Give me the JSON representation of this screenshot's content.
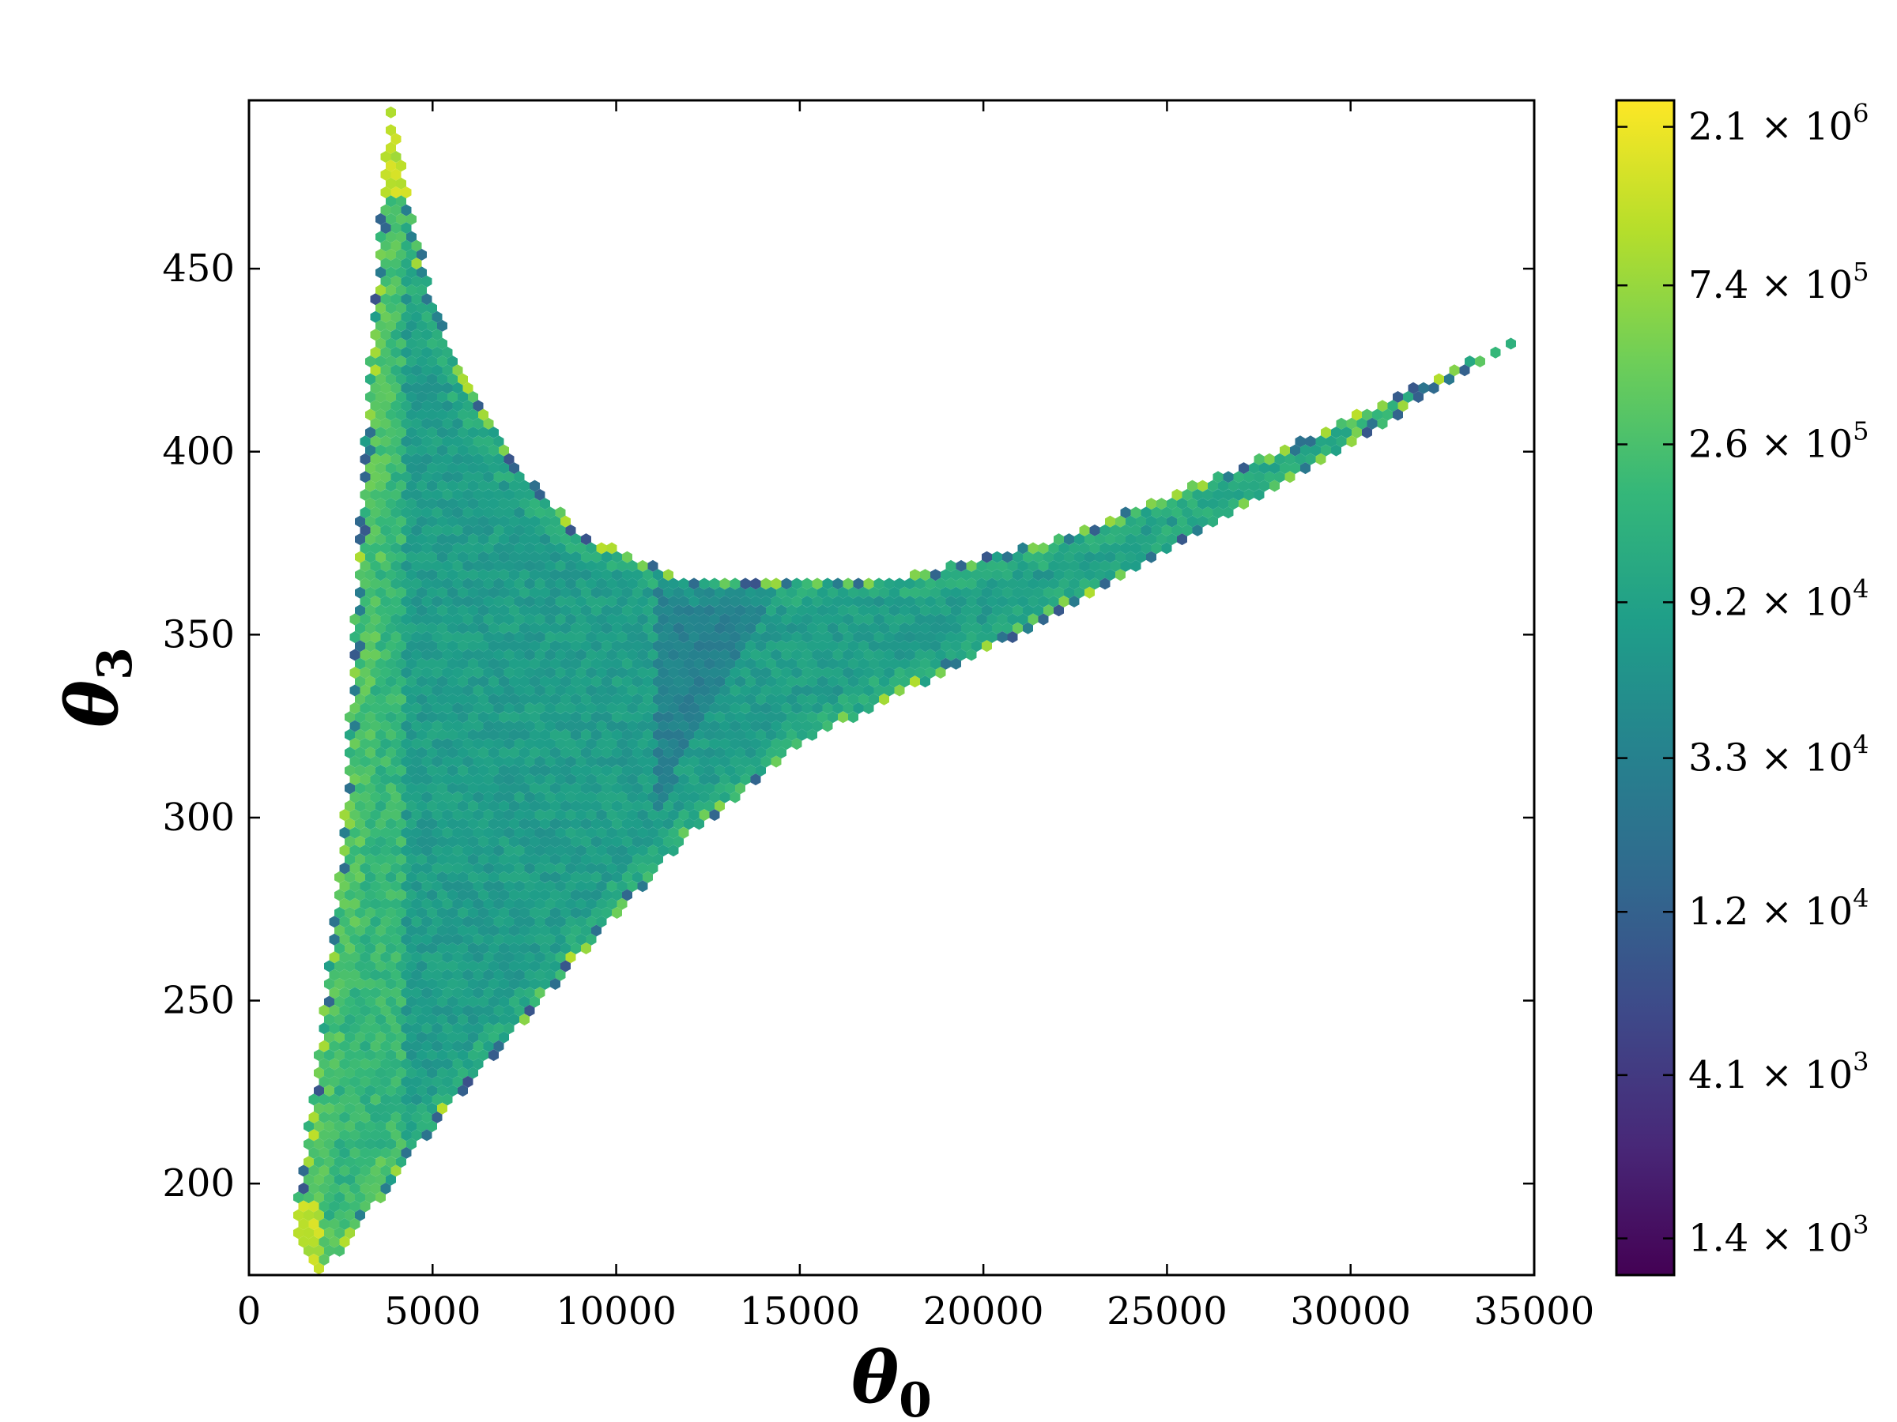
{
  "chart_data": {
    "type": "scatter",
    "subtype": "hexbin-density",
    "title": "",
    "xlabel": "θ",
    "xlabel_subscript": "0",
    "ylabel": "θ",
    "ylabel_subscript": "3",
    "xlim": [
      0,
      35000
    ],
    "ylim": [
      175,
      496
    ],
    "x_ticks": [
      0,
      5000,
      10000,
      15000,
      20000,
      25000,
      30000,
      35000
    ],
    "x_tick_labels": [
      "0",
      "5000",
      "10000",
      "15000",
      "20000",
      "25000",
      "30000",
      "35000"
    ],
    "y_ticks": [
      200,
      250,
      300,
      350,
      400,
      450
    ],
    "y_tick_labels": [
      "200",
      "250",
      "300",
      "350",
      "400",
      "450"
    ],
    "grid": false,
    "region": {
      "apex_top": [
        3800,
        496
      ],
      "bottom": [
        2000,
        175
      ],
      "left_edge": [
        [
          1200,
          186
        ],
        [
          1800,
          230
        ],
        [
          2600,
          300
        ],
        [
          3000,
          380
        ],
        [
          3400,
          440
        ],
        [
          3800,
          496
        ]
      ],
      "upper_edge": [
        [
          3800,
          496
        ],
        [
          5000,
          440
        ],
        [
          7000,
          400
        ],
        [
          9000,
          378
        ],
        [
          12000,
          365
        ],
        [
          18000,
          366
        ],
        [
          22000,
          376
        ],
        [
          28000,
          400
        ],
        [
          34800,
          432
        ]
      ],
      "lower_edge": [
        [
          2000,
          175
        ],
        [
          5000,
          215
        ],
        [
          9000,
          262
        ],
        [
          12000,
          295
        ],
        [
          15000,
          320
        ],
        [
          20000,
          345
        ],
        [
          25000,
          372
        ],
        [
          30000,
          402
        ],
        [
          34800,
          432
        ]
      ]
    },
    "colorbar": {
      "colormap": "viridis",
      "scale": "log",
      "range": [
        1100,
        2500000
      ],
      "ticks": [
        {
          "value": 1400,
          "mantissa": "1.4",
          "exp": "3"
        },
        {
          "value": 4100,
          "mantissa": "4.1",
          "exp": "3"
        },
        {
          "value": 12000,
          "mantissa": "1.2",
          "exp": "4"
        },
        {
          "value": 33000,
          "mantissa": "3.3",
          "exp": "4"
        },
        {
          "value": 92000,
          "mantissa": "9.2",
          "exp": "4"
        },
        {
          "value": 260000,
          "mantissa": "2.6",
          "exp": "5"
        },
        {
          "value": 740000,
          "mantissa": "7.4",
          "exp": "5"
        },
        {
          "value": 2100000,
          "mantissa": "2.1",
          "exp": "6"
        }
      ],
      "times_symbol": "×",
      "base": "10"
    },
    "colors": {
      "viridis": [
        "#440154",
        "#482878",
        "#3e4989",
        "#31688e",
        "#26828e",
        "#1f9e89",
        "#35b779",
        "#6ece58",
        "#b5de2b",
        "#fde725"
      ]
    }
  }
}
